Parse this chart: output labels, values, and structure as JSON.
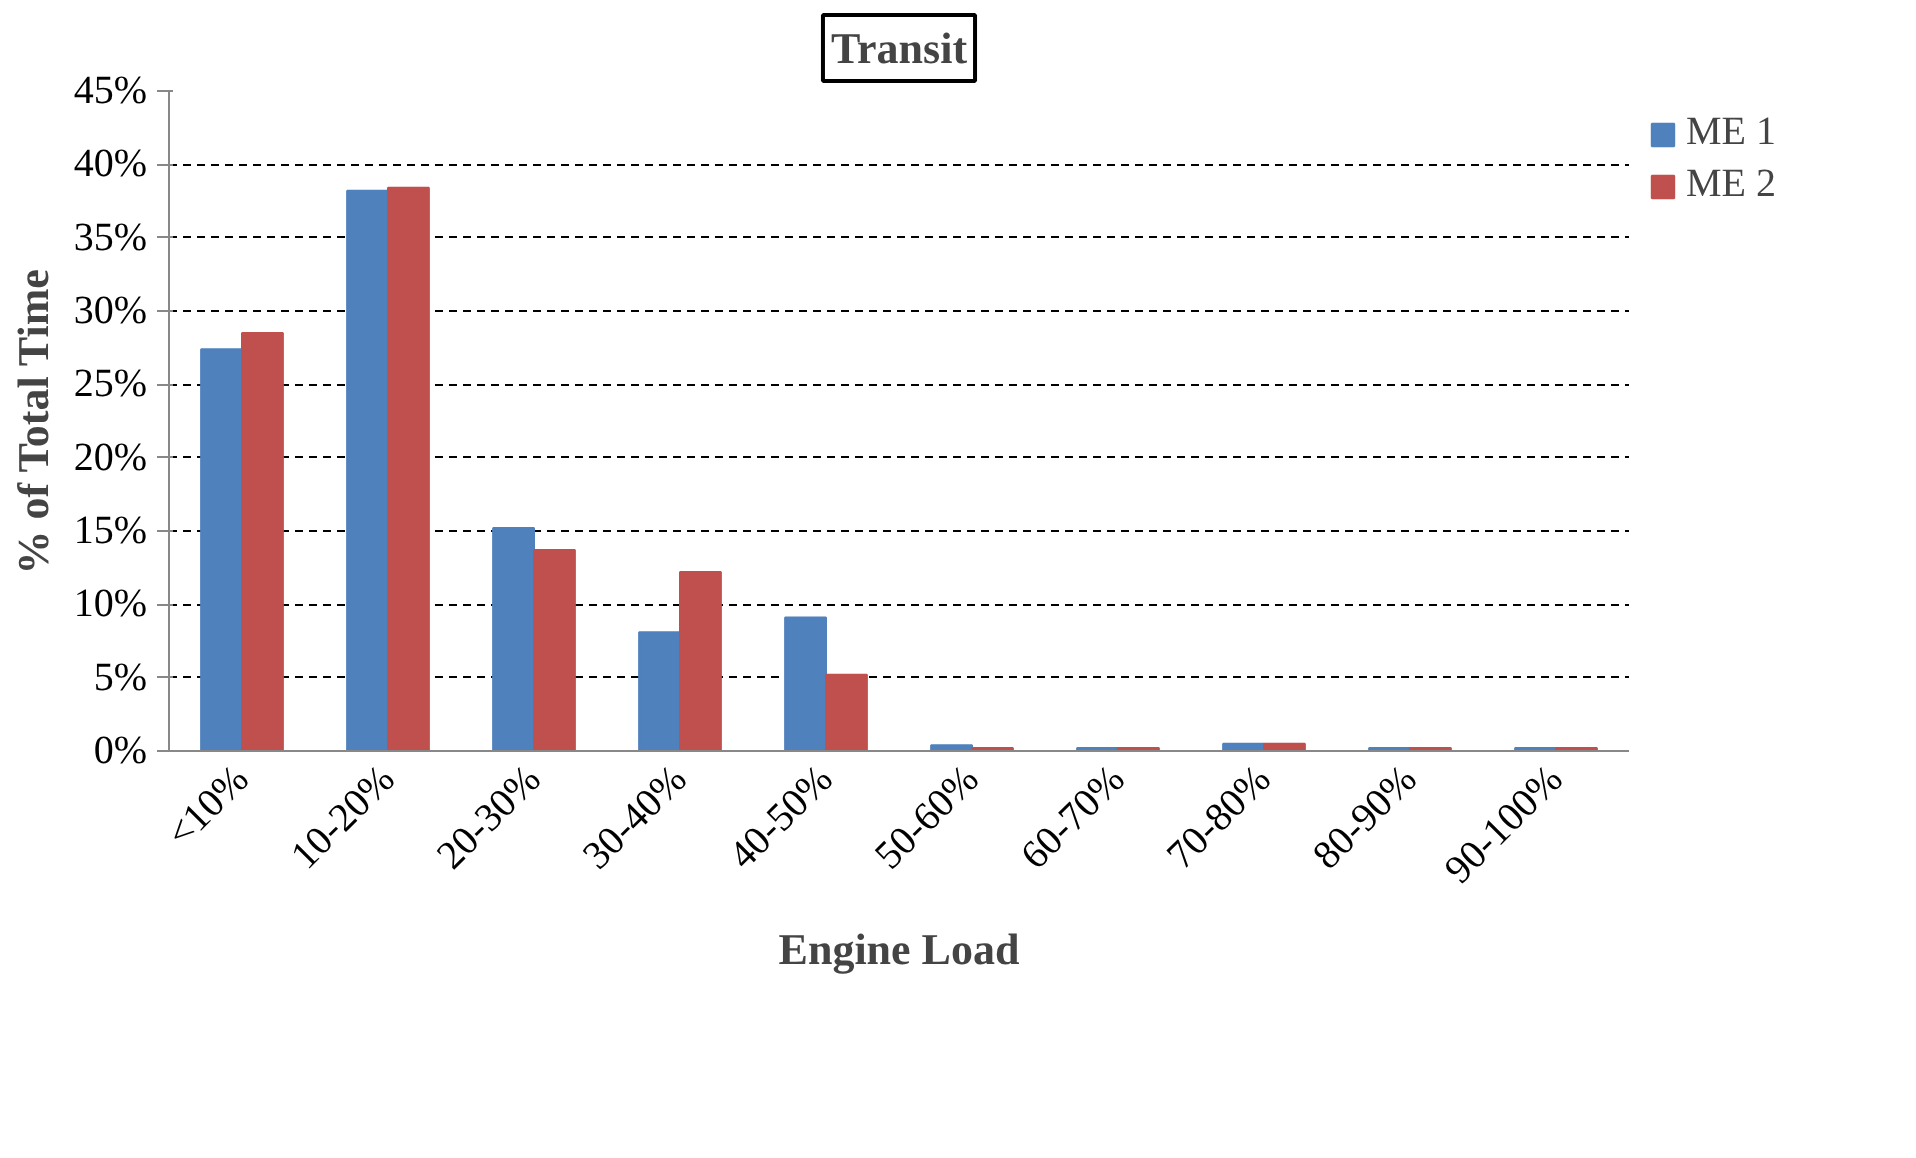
{
  "chart_data": {
    "type": "bar",
    "title": "Transit",
    "xlabel": "Engine Load",
    "ylabel": "% of Total Time",
    "categories": [
      "<10%",
      "10-20%",
      "20-30%",
      "30-40%",
      "40-50%",
      "50-60%",
      "60-70%",
      "70-80%",
      "80-90%",
      "90-100%"
    ],
    "series": [
      {
        "name": "ME 1",
        "color": "#4f81bd",
        "values": [
          27.4,
          38.2,
          15.2,
          8.1,
          9.1,
          0.4,
          0.2,
          0.5,
          0.2,
          0.2
        ]
      },
      {
        "name": "ME 2",
        "color": "#c0504d",
        "values": [
          28.5,
          38.4,
          13.7,
          12.2,
          5.2,
          0.2,
          0.2,
          0.5,
          0.2,
          0.2
        ]
      }
    ],
    "ylim": [
      0,
      45
    ],
    "yticks": [
      {
        "value": 0,
        "label": "0%"
      },
      {
        "value": 5,
        "label": "5%"
      },
      {
        "value": 10,
        "label": "10%"
      },
      {
        "value": 15,
        "label": "15%"
      },
      {
        "value": 20,
        "label": "20%"
      },
      {
        "value": 25,
        "label": "25%"
      },
      {
        "value": 30,
        "label": "30%"
      },
      {
        "value": 35,
        "label": "35%"
      },
      {
        "value": 40,
        "label": "40%"
      },
      {
        "value": 45,
        "label": "45%"
      }
    ],
    "grid": "y",
    "legend": "top right"
  }
}
